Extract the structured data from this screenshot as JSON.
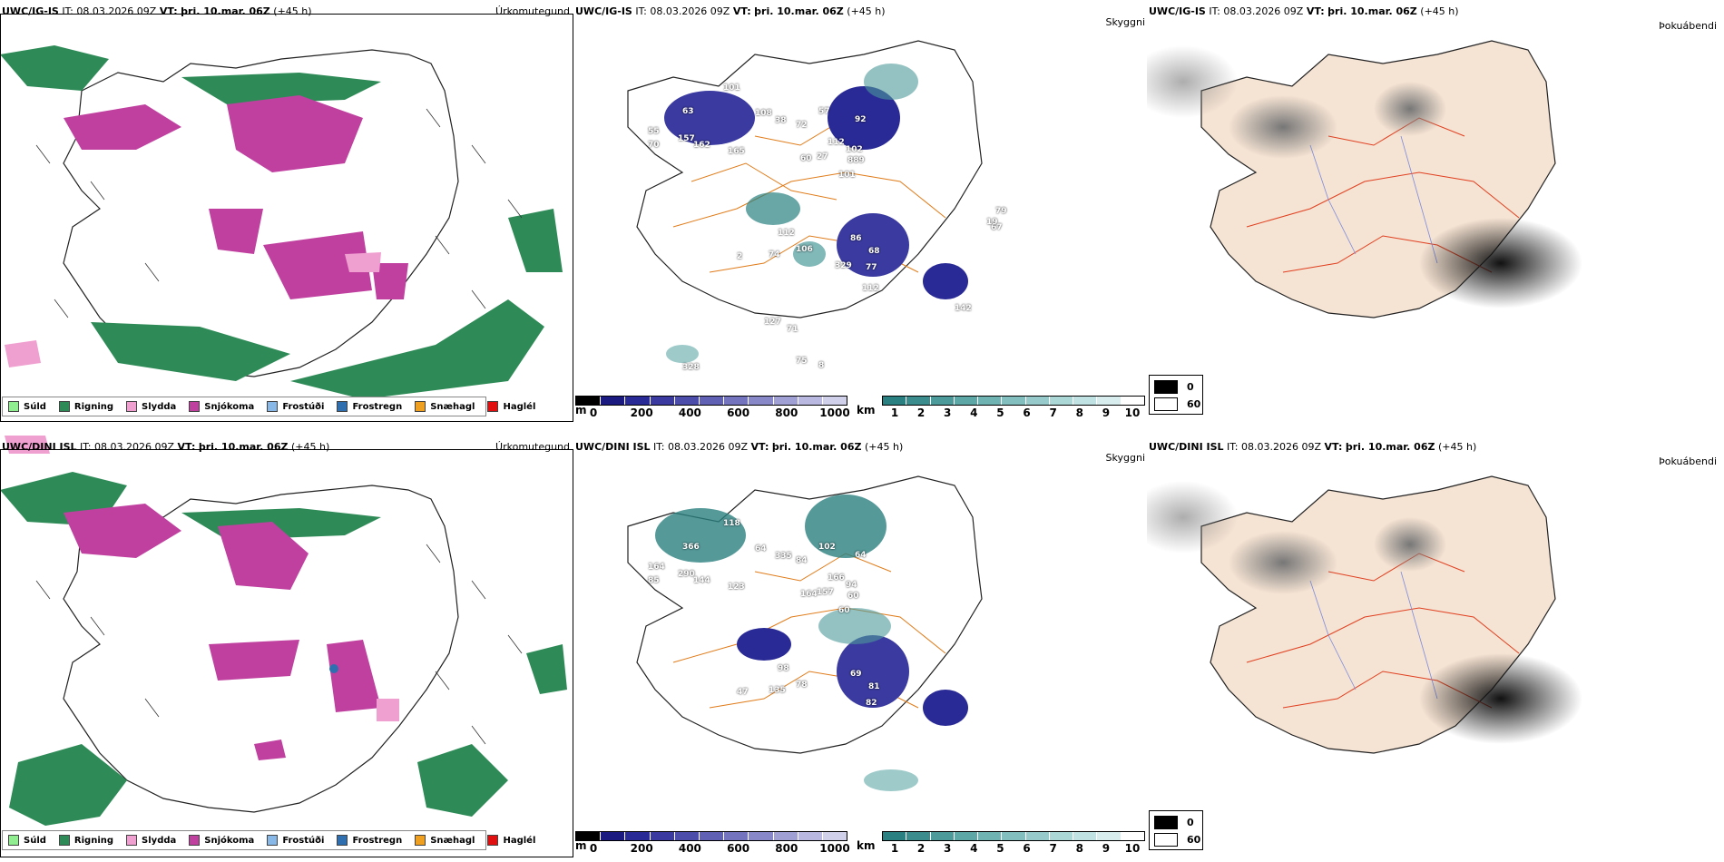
{
  "rows": [
    {
      "id": "top",
      "precip_header": {
        "model": "UWC/IG-IS",
        "it_label": "IT:",
        "it_value": "08.03.2026 09Z",
        "vt_label": "VT:",
        "vt_value": "þri. 10.mar. 06Z",
        "lead": "(+45 h)"
      },
      "vis_header": {
        "model": "UWC/IG-IS",
        "it_label": "IT:",
        "it_value": "08.03.2026 09Z",
        "vt_label": "VT:",
        "vt_value": "þri. 10.mar. 06Z",
        "lead": "(+45 h)"
      },
      "cloud_header": {
        "model": "UWC/IG-IS",
        "it_label": "IT:",
        "it_value": "08.03.2026 09Z",
        "vt_label": "VT:",
        "vt_value": "þri. 10.mar. 06Z",
        "lead": "(+45 h)"
      },
      "vis_labels": [
        "55",
        "157",
        "162",
        "165",
        "108",
        "101",
        "70",
        "63",
        "38",
        "72",
        "57",
        "92",
        "112",
        "27",
        "102",
        "889",
        "101",
        "60",
        "112",
        "74",
        "2",
        "106",
        "86",
        "68",
        "77",
        "329",
        "112",
        "142",
        "79",
        "67",
        "19",
        "127",
        "71",
        "75",
        "8",
        "328"
      ]
    },
    {
      "id": "bottom",
      "precip_header": {
        "model": "UWC/DINI ISL",
        "it_label": "IT:",
        "it_value": "08.03.2026 09Z",
        "vt_label": "VT:",
        "vt_value": "þri. 10.mar. 06Z",
        "lead": "(+45 h)"
      },
      "vis_header": {
        "model": "UWC/DINI ISL",
        "it_label": "IT:",
        "it_value": "08.03.2026 09Z",
        "vt_label": "VT:",
        "vt_value": "þri. 10.mar. 06Z",
        "lead": "(+45 h)"
      },
      "cloud_header": {
        "model": "UWC/DINI ISL",
        "it_label": "IT:",
        "it_value": "08.03.2026 09Z",
        "vt_label": "VT:",
        "vt_value": "þri. 10.mar. 06Z",
        "lead": "(+45 h)"
      },
      "vis_labels": [
        "164",
        "290",
        "144",
        "123",
        "64",
        "118",
        "85",
        "366",
        "335",
        "84",
        "102",
        "64",
        "166",
        "157",
        "94",
        "60",
        "60",
        "164",
        "98",
        "135",
        "47",
        "78",
        "69",
        "81",
        "82"
      ]
    }
  ],
  "panel_titles": {
    "precip": "Úrkomutegund",
    "vis": "Skyggni",
    "cloud": "Þokuábendi"
  },
  "precip_legend": [
    {
      "label": "Súld",
      "color": "#90ee90"
    },
    {
      "label": "Rigning",
      "color": "#2e8b57"
    },
    {
      "label": "Slydda",
      "color": "#f0a0d0"
    },
    {
      "label": "Snjókoma",
      "color": "#c040a0"
    },
    {
      "label": "Frostúði",
      "color": "#87b8e8"
    },
    {
      "label": "Frostregn",
      "color": "#2f6fb0"
    },
    {
      "label": "Snæhagl",
      "color": "#f0a020"
    },
    {
      "label": "Haglél",
      "color": "#e01010"
    }
  ],
  "height_scale": {
    "unit": "m",
    "ticks": [
      "0",
      "200",
      "400",
      "600",
      "800",
      "1000"
    ],
    "colors": [
      "#000000",
      "#1a1a80",
      "#2a2a96",
      "#3a3aa0",
      "#4c4caa",
      "#6060b4",
      "#7474be",
      "#8888c8",
      "#a0a0d4",
      "#b8b8e0",
      "#d0d0ea"
    ]
  },
  "vis_scale": {
    "unit": "km",
    "ticks": [
      "1",
      "2",
      "3",
      "4",
      "5",
      "6",
      "7",
      "8",
      "9",
      "10"
    ],
    "colors": [
      "#2a8080",
      "#3b8d8d",
      "#4c9a9a",
      "#5ea7a7",
      "#70b3b3",
      "#83bfbf",
      "#97cbcb",
      "#abd7d7",
      "#c1e2e2",
      "#d8eeee",
      "#ffffff"
    ]
  },
  "cloud_scale": {
    "items": [
      "0",
      "60"
    ],
    "colors": [
      "#000000",
      "#ffffff"
    ]
  }
}
